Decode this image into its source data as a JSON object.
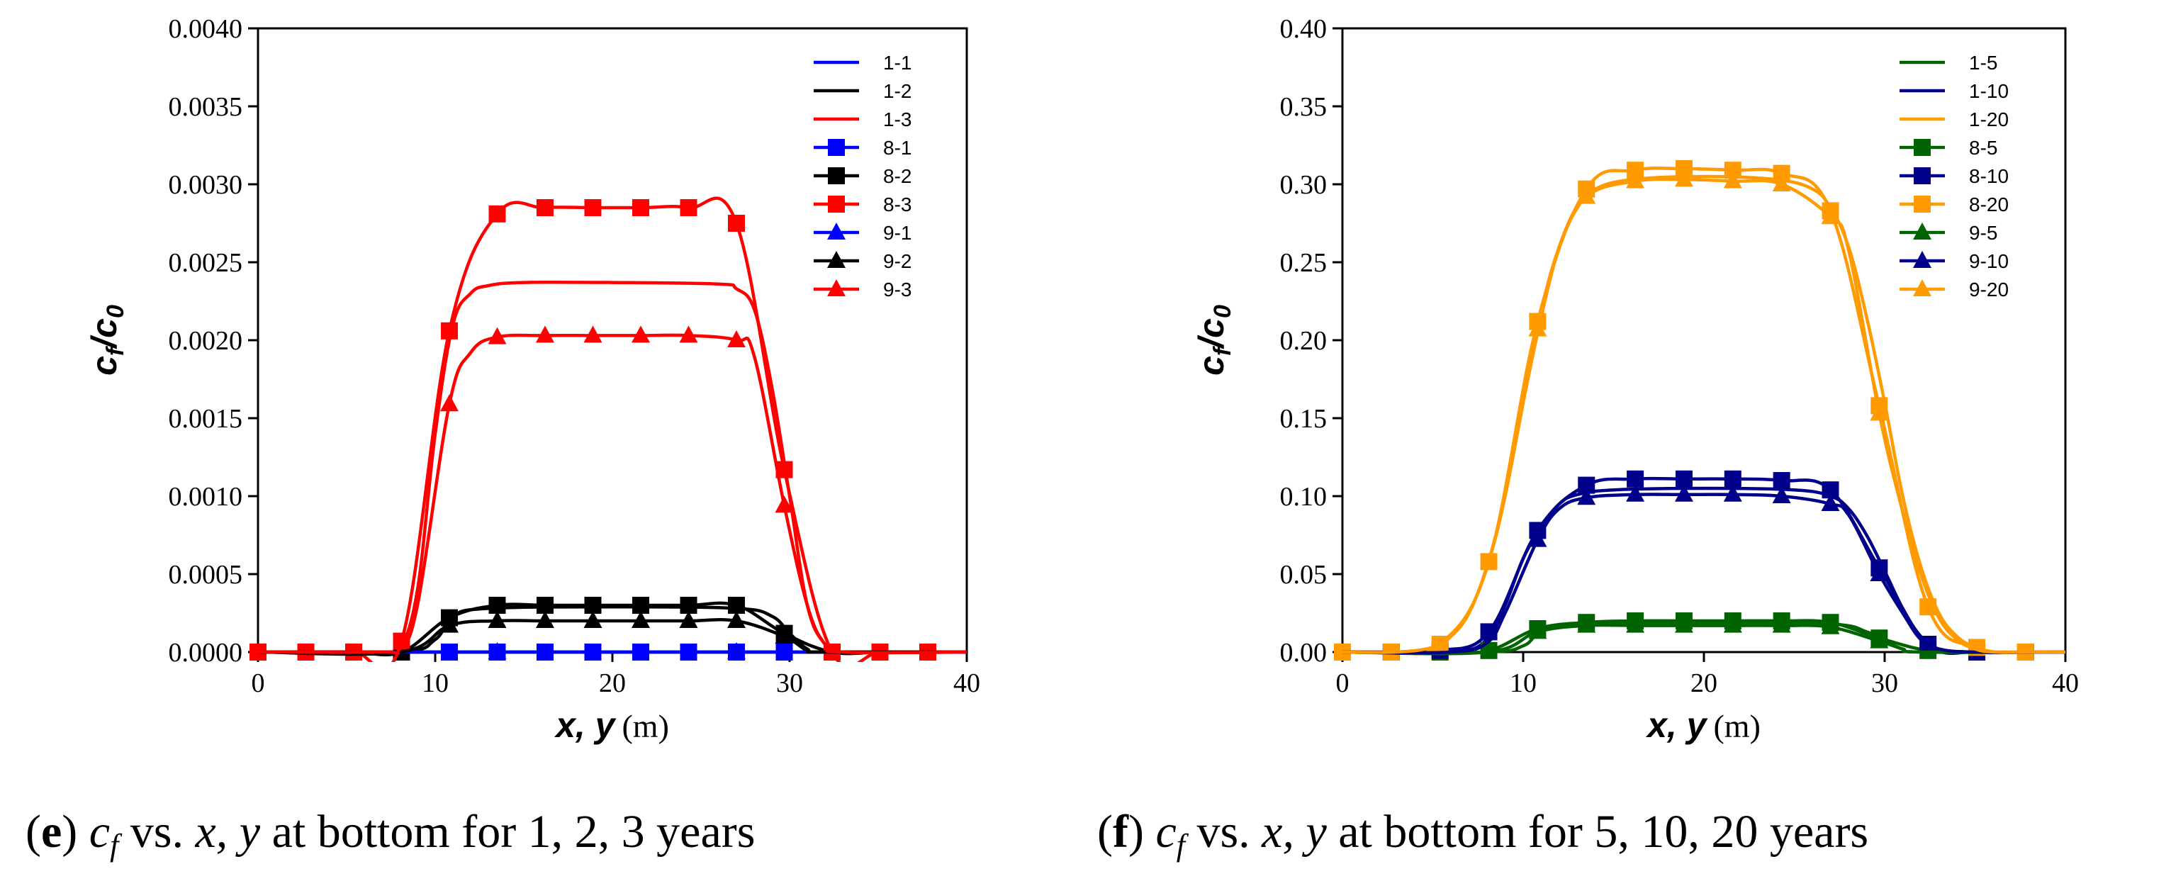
{
  "chart_data": [
    {
      "type": "line",
      "ylabel": "c_f/c_0",
      "xlabel": "x, y (m)",
      "xlim": [
        0,
        40
      ],
      "ylim": [
        0,
        0.004
      ],
      "xticks": [
        0,
        10,
        20,
        30,
        40
      ],
      "xtick_labels": [
        "0",
        "10",
        "20",
        "30",
        "40"
      ],
      "yticks": [
        0,
        0.0005,
        0.001,
        0.0015,
        0.002,
        0.0025,
        0.003,
        0.0035,
        0.004
      ],
      "ytick_labels": [
        "0.0000",
        "0.0005",
        "0.0010",
        "0.0015",
        "0.0020",
        "0.0025",
        "0.0030",
        "0.0035",
        "0.0040"
      ],
      "legend_position": "top-right",
      "caption": {
        "letter": "(e)",
        "var": "c",
        "sub": "f",
        "text": " vs. ",
        "xy": "x, y",
        "rest": " at bottom for 1, 2, 3 years"
      },
      "series": [
        {
          "name": "1-1",
          "color": "#0000ff",
          "marker": "none",
          "x": [
            0,
            8,
            10,
            12,
            14,
            20,
            26,
            28,
            30,
            32,
            40
          ],
          "y": [
            0,
            0,
            0,
            0,
            0,
            0,
            0,
            0,
            0,
            0,
            0
          ]
        },
        {
          "name": "1-2",
          "color": "#000000",
          "marker": "none",
          "x": [
            0,
            8,
            10,
            11,
            13,
            20,
            27,
            29,
            30,
            31,
            32,
            40
          ],
          "y": [
            0,
            0,
            8e-05,
            0.00023,
            0.00028,
            0.00029,
            0.00028,
            0.00023,
            0.00012,
            2e-05,
            0,
            0
          ]
        },
        {
          "name": "1-3",
          "color": "#ff0000",
          "marker": "none",
          "x": [
            0,
            7,
            8,
            9,
            10,
            11,
            12,
            13,
            15,
            20,
            26,
            27,
            28,
            29,
            30,
            31,
            32,
            33,
            40
          ],
          "y": [
            0,
            0,
            2e-05,
            0.0004,
            0.0014,
            0.0021,
            0.0023,
            0.00235,
            0.00237,
            0.00237,
            0.00236,
            0.00233,
            0.0022,
            0.0017,
            0.001,
            0.0003,
            5e-05,
            0,
            0
          ]
        },
        {
          "name": "8-1",
          "color": "#0000ff",
          "marker": "square",
          "x": [
            0,
            2.7,
            5.4,
            8.1,
            10.8,
            13.5,
            16.2,
            18.9,
            21.6,
            24.3,
            27.0,
            29.7,
            32.4,
            35.1,
            37.8
          ],
          "y": [
            0,
            0,
            0,
            0,
            0,
            0,
            0,
            0,
            0,
            0,
            0,
            0,
            0,
            0,
            0
          ]
        },
        {
          "name": "8-2",
          "color": "#000000",
          "marker": "square",
          "x": [
            0,
            2.7,
            5.4,
            8.1,
            10.8,
            13.5,
            16.2,
            18.9,
            21.6,
            24.3,
            27.0,
            29.7,
            32.4,
            35.1,
            37.8
          ],
          "y": [
            0,
            0,
            0,
            0,
            0.00022,
            0.0003,
            0.0003,
            0.0003,
            0.0003,
            0.0003,
            0.0003,
            0.00012,
            0,
            0,
            0
          ]
        },
        {
          "name": "8-3",
          "color": "#ff0000",
          "marker": "square",
          "x": [
            0,
            2.7,
            5.4,
            8.1,
            10.8,
            13.5,
            16.2,
            18.9,
            21.6,
            24.3,
            27.0,
            29.7,
            32.4,
            35.1,
            37.8
          ],
          "y": [
            0,
            0,
            0,
            7e-05,
            0.00206,
            0.00281,
            0.00285,
            0.00285,
            0.00285,
            0.00285,
            0.00275,
            0.00117,
            0,
            0,
            0
          ]
        },
        {
          "name": "9-1",
          "color": "#0000ff",
          "marker": "triangle",
          "x": [
            0,
            8,
            10,
            13.5,
            20,
            27,
            30,
            32,
            40
          ],
          "y": [
            0,
            0,
            0,
            0,
            0,
            0,
            0,
            0,
            0
          ]
        },
        {
          "name": "9-2",
          "color": "#000000",
          "marker": "triangle",
          "x": [
            0,
            8,
            10.8,
            13.5,
            16.2,
            18.9,
            21.6,
            24.3,
            27.0,
            29.7,
            31,
            32,
            40
          ],
          "y": [
            0,
            0,
            0.00017,
            0.0002,
            0.0002,
            0.0002,
            0.0002,
            0.0002,
            0.0002,
            0.0001,
            1e-05,
            0,
            0
          ]
        },
        {
          "name": "9-3",
          "color": "#ff0000",
          "marker": "triangle",
          "x": [
            0,
            7,
            8,
            9,
            10.8,
            12,
            13.5,
            16.2,
            18.9,
            21.6,
            24.3,
            27.0,
            28,
            29.7,
            31,
            32,
            33,
            40
          ],
          "y": [
            0,
            0,
            2e-05,
            0.0003,
            0.00159,
            0.00192,
            0.00202,
            0.00203,
            0.00203,
            0.00203,
            0.00203,
            0.002,
            0.0019,
            0.00094,
            0.0003,
            5e-05,
            0,
            0
          ]
        }
      ]
    },
    {
      "type": "line",
      "ylabel": "c_f/c_0",
      "xlabel": "x, y (m)",
      "xlim": [
        0,
        40
      ],
      "ylim": [
        0,
        0.4
      ],
      "xticks": [
        0,
        10,
        20,
        30,
        40
      ],
      "xtick_labels": [
        "0",
        "10",
        "20",
        "30",
        "40"
      ],
      "yticks": [
        0,
        0.05,
        0.1,
        0.15,
        0.2,
        0.25,
        0.3,
        0.35,
        0.4
      ],
      "ytick_labels": [
        "0.00",
        "0.05",
        "0.10",
        "0.15",
        "0.20",
        "0.25",
        "0.30",
        "0.35",
        "0.40"
      ],
      "legend_position": "top-right",
      "caption": {
        "letter": "(f)",
        "var": "c",
        "sub": "f",
        "text": " vs. ",
        "xy": "x, y",
        "rest": " at bottom for 5, 10, 20 years"
      },
      "series": [
        {
          "name": "1-5",
          "color": "#006400",
          "marker": "none",
          "x": [
            0,
            8,
            10,
            11,
            13,
            20,
            27,
            29,
            30,
            31,
            32,
            40
          ],
          "y": [
            0,
            0,
            0.004,
            0.013,
            0.018,
            0.019,
            0.018,
            0.013,
            0.007,
            0.002,
            0,
            0
          ]
        },
        {
          "name": "1-10",
          "color": "#00008b",
          "marker": "none",
          "x": [
            0,
            6,
            8,
            9,
            10,
            11,
            12,
            13,
            15,
            20,
            25,
            27,
            28,
            29,
            30,
            31,
            32,
            33,
            35,
            40
          ],
          "y": [
            0,
            0,
            0.008,
            0.03,
            0.06,
            0.08,
            0.095,
            0.101,
            0.104,
            0.105,
            0.104,
            0.1,
            0.092,
            0.075,
            0.052,
            0.028,
            0.01,
            0.002,
            0,
            0
          ]
        },
        {
          "name": "1-20",
          "color": "#ff9a00",
          "marker": "none",
          "x": [
            0,
            3,
            5,
            6,
            7,
            8,
            9,
            10,
            11,
            12,
            13,
            14,
            16,
            20,
            24,
            26,
            27,
            28,
            29,
            30,
            31,
            32,
            33,
            34,
            35,
            36,
            38,
            40
          ],
          "y": [
            0,
            0,
            0.003,
            0.01,
            0.025,
            0.055,
            0.1,
            0.16,
            0.215,
            0.26,
            0.285,
            0.297,
            0.303,
            0.305,
            0.303,
            0.297,
            0.285,
            0.26,
            0.215,
            0.16,
            0.1,
            0.055,
            0.025,
            0.01,
            0.003,
            0,
            0,
            0
          ]
        },
        {
          "name": "8-5",
          "color": "#006400",
          "marker": "square",
          "x": [
            0,
            2.7,
            5.4,
            8.1,
            10.8,
            13.5,
            16.2,
            18.9,
            21.6,
            24.3,
            27.0,
            29.7,
            32.4,
            35.1,
            37.8
          ],
          "y": [
            0,
            0,
            0,
            0.001,
            0.015,
            0.019,
            0.02,
            0.02,
            0.02,
            0.02,
            0.019,
            0.009,
            0.001,
            0,
            0
          ]
        },
        {
          "name": "8-10",
          "color": "#00008b",
          "marker": "square",
          "x": [
            0,
            2.7,
            5.4,
            8.1,
            10.8,
            13.5,
            16.2,
            18.9,
            21.6,
            24.3,
            27.0,
            29.7,
            32.4,
            35.1,
            37.8
          ],
          "y": [
            0,
            0,
            0.001,
            0.013,
            0.078,
            0.107,
            0.111,
            0.111,
            0.111,
            0.11,
            0.104,
            0.054,
            0.005,
            0,
            0
          ]
        },
        {
          "name": "8-20",
          "color": "#ff9a00",
          "marker": "square",
          "x": [
            0,
            2.7,
            5.4,
            8.1,
            10.8,
            13.5,
            16.2,
            18.9,
            21.6,
            24.3,
            27.0,
            29.7,
            32.4,
            35.1,
            37.8
          ],
          "y": [
            0,
            0,
            0.005,
            0.058,
            0.212,
            0.297,
            0.309,
            0.31,
            0.309,
            0.307,
            0.283,
            0.158,
            0.029,
            0.003,
            0
          ]
        },
        {
          "name": "9-5",
          "color": "#006400",
          "marker": "triangle",
          "x": [
            0,
            8,
            10.8,
            13.5,
            16.2,
            18.9,
            21.6,
            24.3,
            27.0,
            29.7,
            31,
            32,
            40
          ],
          "y": [
            0,
            0,
            0.013,
            0.017,
            0.017,
            0.017,
            0.017,
            0.017,
            0.016,
            0.007,
            0.002,
            0,
            0
          ]
        },
        {
          "name": "9-10",
          "color": "#00008b",
          "marker": "triangle",
          "x": [
            0,
            6,
            8,
            9,
            10.8,
            12,
            13.5,
            16.2,
            18.9,
            21.6,
            24.3,
            27.0,
            28,
            29.7,
            31,
            32,
            33,
            35,
            40
          ],
          "y": [
            0,
            0,
            0.006,
            0.025,
            0.072,
            0.092,
            0.099,
            0.101,
            0.101,
            0.101,
            0.1,
            0.095,
            0.088,
            0.05,
            0.025,
            0.008,
            0.002,
            0,
            0
          ]
        },
        {
          "name": "9-20",
          "color": "#ff9a00",
          "marker": "triangle",
          "x": [
            0,
            3,
            5,
            6,
            7,
            8,
            9,
            10.8,
            12,
            13.5,
            16.2,
            18.9,
            21.6,
            24.3,
            27.0,
            28,
            29.7,
            31,
            32,
            33,
            34,
            35,
            36,
            38,
            40
          ],
          "y": [
            0,
            0,
            0.003,
            0.01,
            0.025,
            0.055,
            0.1,
            0.207,
            0.26,
            0.292,
            0.302,
            0.303,
            0.302,
            0.3,
            0.279,
            0.258,
            0.153,
            0.09,
            0.05,
            0.022,
            0.008,
            0.002,
            0,
            0,
            0
          ]
        }
      ]
    }
  ]
}
